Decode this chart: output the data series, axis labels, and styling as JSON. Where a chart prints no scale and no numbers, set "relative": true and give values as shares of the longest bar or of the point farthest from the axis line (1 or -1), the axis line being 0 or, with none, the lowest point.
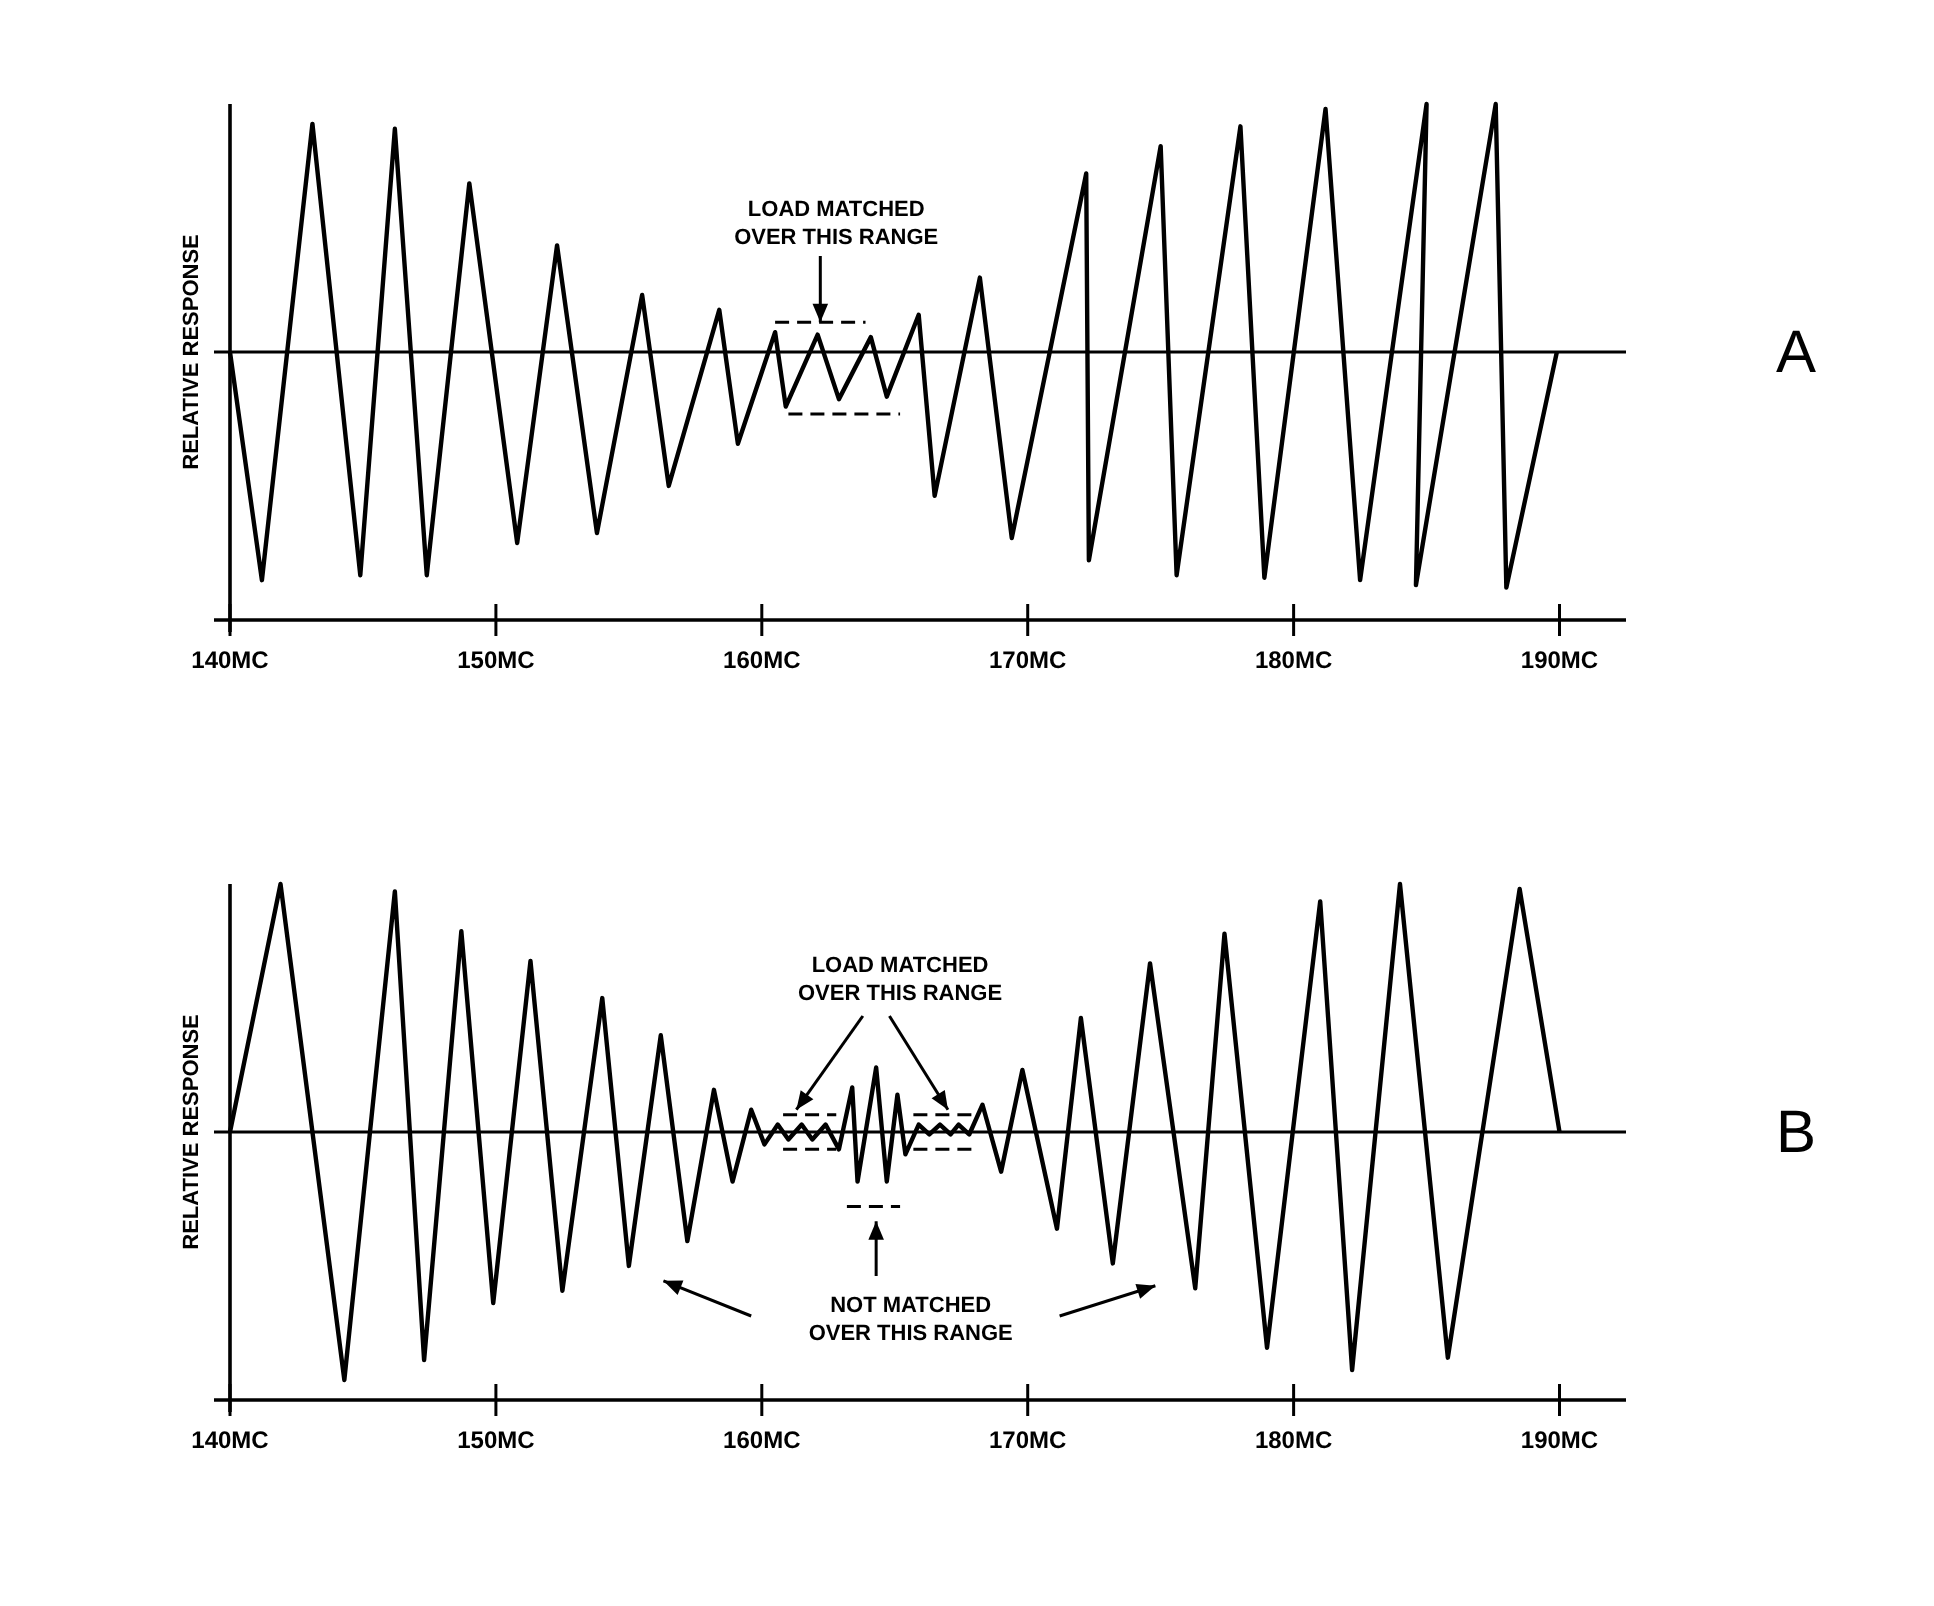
{
  "chart_data": [
    {
      "type": "line",
      "relative": true,
      "ylabel": "RELATIVE RESPONSE",
      "xlim": [
        140,
        192.5
      ],
      "xticks": [
        {
          "value": 140,
          "label": "140MC"
        },
        {
          "value": 150,
          "label": "150MC"
        },
        {
          "value": 160,
          "label": "160MC"
        },
        {
          "value": 170,
          "label": "170MC"
        },
        {
          "value": 180,
          "label": "180MC"
        },
        {
          "value": 190,
          "label": "190MC"
        }
      ],
      "annotations": [
        "LOAD MATCHED\nOVER THIS RANGE",
        "A"
      ],
      "series": [
        {
          "color": "#000000",
          "x": [
            140,
            141.2,
            143.1,
            144.9,
            146.2,
            147.4,
            149.0,
            150.8,
            152.3,
            153.8,
            155.5,
            156.5,
            158.4,
            159.1,
            160.5,
            160.9,
            162.1,
            162.9,
            164.1,
            164.7,
            165.9,
            166.5,
            168.2,
            169.4,
            172.2,
            172.3,
            175.0,
            175.6,
            178.0,
            178.9,
            181.2,
            182.5,
            185.0,
            184.6,
            187.6,
            188.0,
            189.9
          ],
          "values": [
            0,
            -0.92,
            0.92,
            -0.9,
            0.9,
            -0.9,
            0.68,
            -0.77,
            0.43,
            -0.73,
            0.23,
            -0.54,
            0.17,
            -0.37,
            0.08,
            -0.22,
            0.07,
            -0.19,
            0.06,
            -0.18,
            0.15,
            -0.58,
            0.3,
            -0.75,
            0.72,
            -0.84,
            0.83,
            -0.9,
            0.91,
            -0.91,
            0.98,
            -0.92,
            1,
            -0.94,
            1,
            -0.95,
            0
          ]
        }
      ]
    },
    {
      "type": "line",
      "relative": true,
      "ylabel": "RELATIVE RESPONSE",
      "xlim": [
        140,
        192.5
      ],
      "xticks": [
        {
          "value": 140,
          "label": "140MC"
        },
        {
          "value": 150,
          "label": "150MC"
        },
        {
          "value": 160,
          "label": "160MC"
        },
        {
          "value": 170,
          "label": "170MC"
        },
        {
          "value": 180,
          "label": "180MC"
        },
        {
          "value": 190,
          "label": "190MC"
        }
      ],
      "annotations": [
        "LOAD MATCHED\nOVER THIS RANGE",
        "NOT MATCHED\nOVER THIS RANGE",
        "B"
      ],
      "series": [
        {
          "color": "#000000",
          "x": [
            140,
            141.9,
            144.3,
            146.2,
            147.3,
            148.7,
            149.9,
            151.3,
            152.5,
            154.0,
            155.0,
            156.2,
            157.2,
            158.2,
            158.9,
            159.6,
            160.1,
            160.6,
            161.0,
            161.5,
            161.9,
            162.4,
            162.9,
            163.4,
            163.6,
            164.3,
            164.7,
            165.1,
            165.4,
            165.9,
            166.3,
            166.7,
            167.1,
            167.4,
            167.8,
            168.3,
            169.0,
            169.8,
            171.1,
            172.0,
            173.2,
            174.6,
            176.3,
            177.4,
            179.0,
            181.0,
            182.2,
            184.0,
            185.8,
            188.5,
            190.0
          ],
          "values": [
            0,
            1,
            -1,
            0.97,
            -0.92,
            0.81,
            -0.69,
            0.69,
            -0.64,
            0.54,
            -0.54,
            0.39,
            -0.44,
            0.17,
            -0.2,
            0.09,
            -0.05,
            0.03,
            -0.03,
            0.03,
            -0.03,
            0.03,
            -0.07,
            0.18,
            -0.2,
            0.26,
            -0.2,
            0.15,
            -0.09,
            0.03,
            -0.01,
            0.03,
            -0.01,
            0.03,
            -0.01,
            0.11,
            -0.16,
            0.25,
            -0.39,
            0.46,
            -0.53,
            0.68,
            -0.63,
            0.8,
            -0.87,
            0.93,
            -0.96,
            1,
            -0.91,
            0.98,
            0
          ]
        }
      ]
    }
  ]
}
